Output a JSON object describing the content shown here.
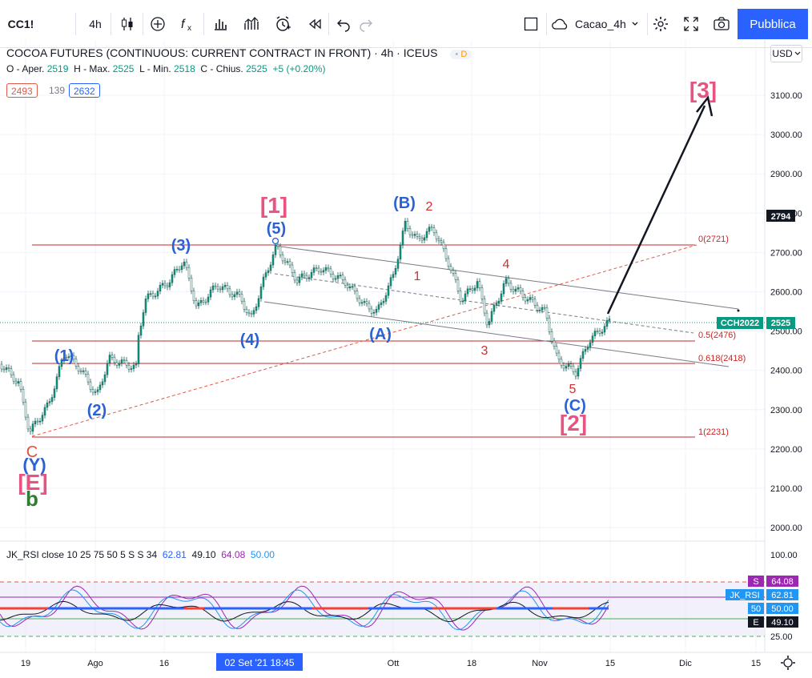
{
  "toolbar": {
    "symbol": "CC1!",
    "interval": "4h",
    "layout_name": "Cacao_4h",
    "publish_label": "Pubblica"
  },
  "legend": {
    "title": "COCOA FUTURES (CONTINUOUS: CURRENT CONTRACT IN FRONT) · 4h · ICEUS",
    "delayed_badge": "D",
    "open_label": "O - Aper.",
    "open": "2519",
    "high_label": "H - Max.",
    "high": "2525",
    "low_label": "L - Min.",
    "low": "2518",
    "close_label": "C - Chius.",
    "close": "2525",
    "change": "+5 (+0.20%)",
    "badge_left": "2493",
    "badge_mid": "139",
    "badge_right": "2632"
  },
  "currency": "USD",
  "price_axis": {
    "ticks": [
      "3100.00",
      "3000.00",
      "2900.00",
      "2800.00",
      "2700.00",
      "2600.00",
      "2500.00",
      "2400.00",
      "2300.00",
      "2200.00",
      "2100.00",
      "2000.00"
    ],
    "marker_high": "2794",
    "marker_last_name": "CCH2022",
    "marker_last": "2525"
  },
  "time_axis": {
    "ticks": [
      "19",
      "Ago",
      "16",
      "Ott",
      "18",
      "Nov",
      "15",
      "Dic",
      "15"
    ],
    "crosshair_label": "02 Set '21   18:45"
  },
  "fib": {
    "level_0": "0(2721)",
    "level_05": "0.5(2476)",
    "level_0618": "0.618(2418)",
    "level_1": "1(2231)"
  },
  "wave_labels": {
    "big_1": "[1]",
    "big_2": "[2]",
    "big_3": "[3]",
    "big_E": "[E]",
    "b": "b",
    "c": "C",
    "y": "(Y)",
    "w1": "(1)",
    "w2": "(2)",
    "w3": "(3)",
    "w4": "(4)",
    "w5": "(5)",
    "wA": "(A)",
    "wB": "(B)",
    "wC": "(C)",
    "s1": "1",
    "s2": "2",
    "s3": "3",
    "s4": "4",
    "s5": "5"
  },
  "rsi": {
    "name": "JK_RSI",
    "params": "close 10 25 75 50 5 S S 34",
    "v1": "62.81",
    "v2": "49.10",
    "v3": "64.08",
    "v4": "50.00",
    "axis_top": "100.00",
    "axis_bottom": "25.00",
    "tag_s": "S",
    "tag_s_value": "64.08",
    "tag_name": "JK_RSI",
    "tag_name_value": "62.81",
    "tag_50": "50",
    "tag_50_value": "50.00",
    "tag_e": "E",
    "tag_e_value": "49.10"
  },
  "colors": {
    "accent": "#2962ff",
    "wave_pink": "#e75480",
    "wave_blue": "#2a62d6",
    "wave_red": "#d32f2f",
    "wave_green": "#2e7d32",
    "candle": "#089981",
    "fib_line": "#c62828"
  }
}
